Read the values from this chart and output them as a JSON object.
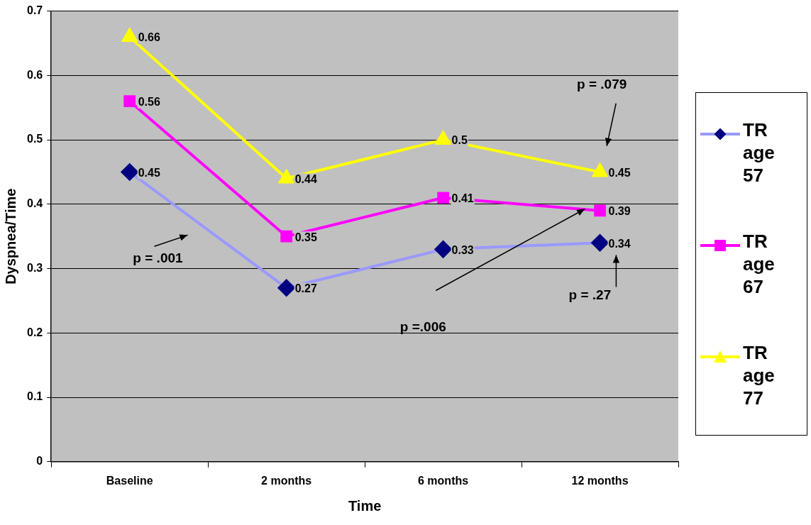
{
  "chart_data": {
    "type": "line",
    "xlabel": "Time",
    "ylabel": "Dyspnea/Time",
    "categories": [
      "Baseline",
      "2 months",
      "6 months",
      "12 months"
    ],
    "series": [
      {
        "name": "TR age 57",
        "color": "#9999ff",
        "marker": "diamond",
        "values": [
          0.45,
          0.27,
          0.33,
          0.34
        ]
      },
      {
        "name": "TR age 67",
        "color": "#ff00ff",
        "marker": "square",
        "values": [
          0.56,
          0.35,
          0.41,
          0.39
        ]
      },
      {
        "name": "TR age 77",
        "color": "#ffff00",
        "marker": "triangle",
        "values": [
          0.66,
          0.44,
          0.5,
          0.45
        ]
      }
    ],
    "ylim": [
      0,
      0.7
    ],
    "yticks": [
      0,
      0.1,
      0.2,
      0.3,
      0.4,
      0.5,
      0.6,
      0.7
    ],
    "grid": "y",
    "legend": "right",
    "data_labels": true,
    "annotations": [
      "p = .001",
      "p =.006",
      "p = .27",
      "p = .079"
    ]
  }
}
